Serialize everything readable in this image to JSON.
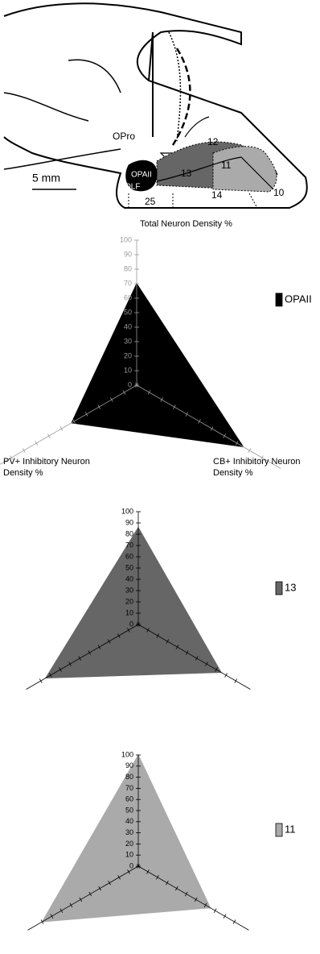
{
  "diagram": {
    "labels": [
      "OPro",
      "OPAII",
      "OLF",
      "12",
      "13",
      "11",
      "14",
      "10",
      "25"
    ],
    "scale_bar": "5 mm"
  },
  "chart_data": [
    {
      "type": "radar",
      "categories": [
        "Total Neuron Density %",
        "CB+ Inhibitory Neuron Density %",
        "PV+ Inhibitory Neuron Density %"
      ],
      "series": [
        {
          "name": "OPAII",
          "color": "#000000",
          "values": [
            70,
            85,
            52
          ]
        }
      ],
      "rlim": [
        0,
        100
      ],
      "rticks": [
        0,
        10,
        20,
        30,
        40,
        50,
        60,
        70,
        80,
        90,
        100
      ]
    },
    {
      "type": "radar",
      "categories": [
        null,
        null,
        null
      ],
      "series": [
        {
          "name": "13",
          "color": "#666666",
          "values": [
            86,
            85,
            95
          ]
        }
      ],
      "rlim": [
        0,
        100
      ],
      "rticks": [
        0,
        10,
        20,
        30,
        40,
        50,
        60,
        70,
        80,
        90,
        100
      ]
    },
    {
      "type": "radar",
      "categories": [
        null,
        null,
        null
      ],
      "series": [
        {
          "name": "11",
          "color": "#aaaaaa",
          "values": [
            100,
            75,
            100
          ]
        }
      ],
      "rlim": [
        0,
        100
      ],
      "rticks": [
        0,
        10,
        20,
        30,
        40,
        50,
        60,
        70,
        80,
        90,
        100
      ]
    }
  ]
}
